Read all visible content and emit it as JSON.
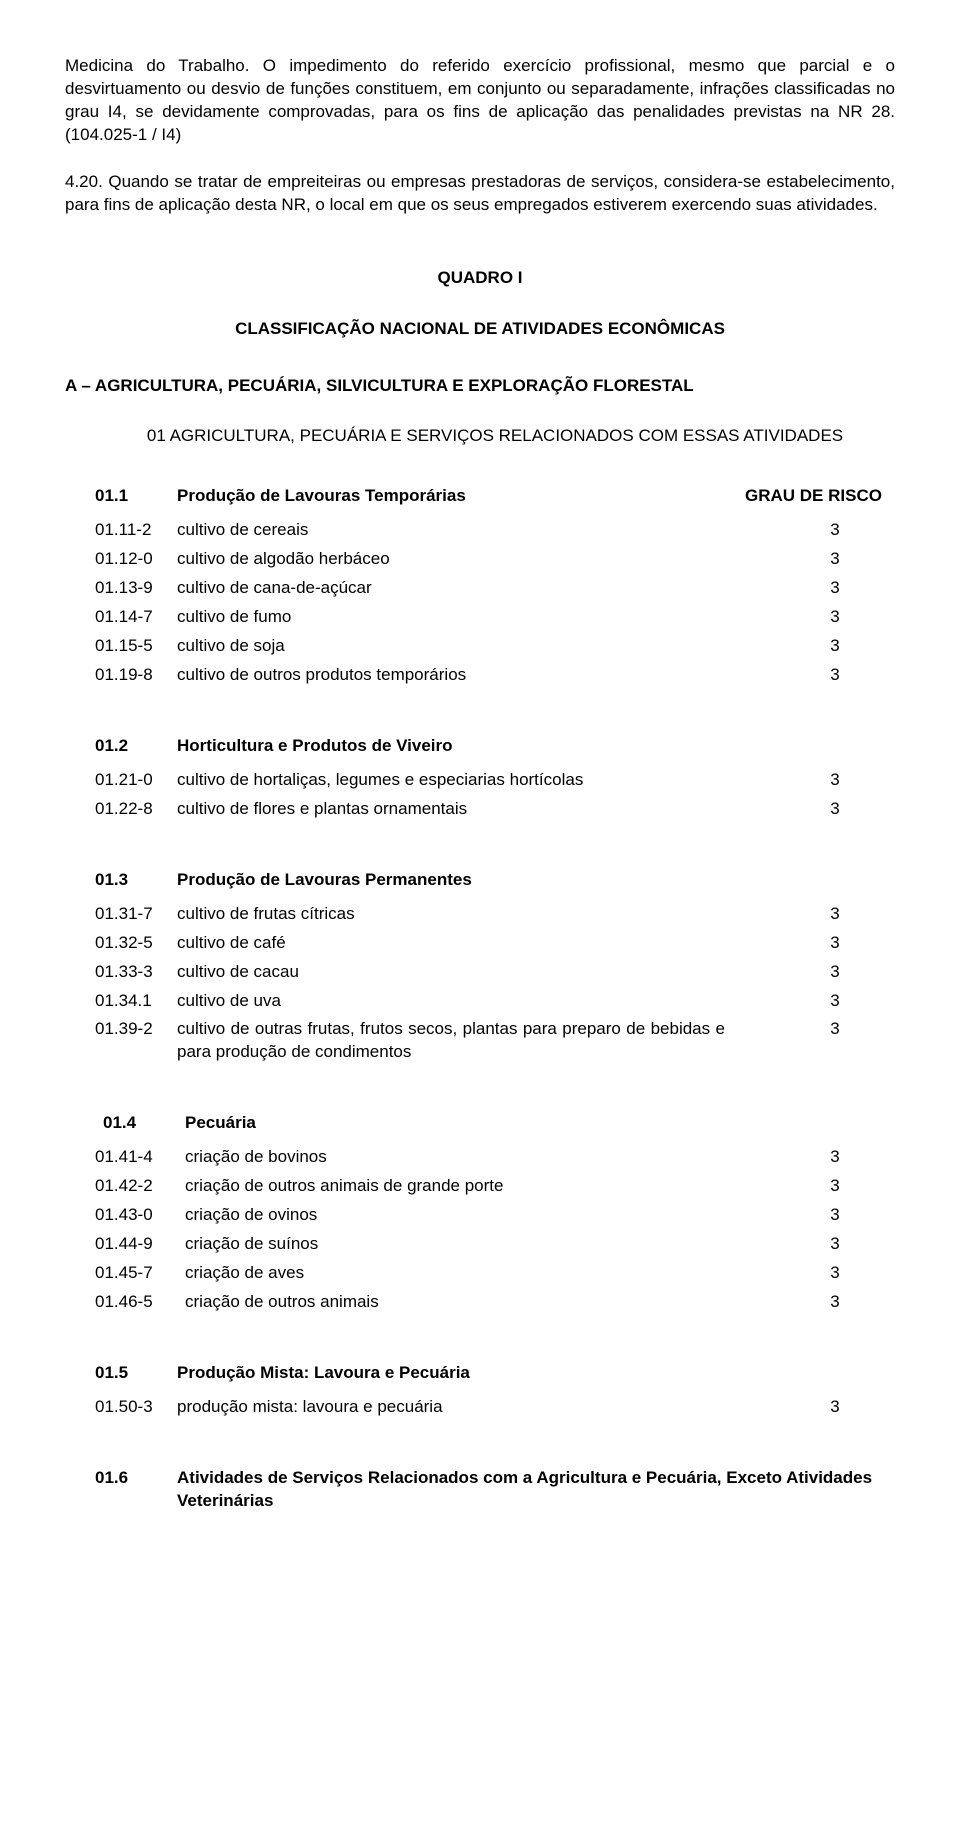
{
  "paragraphs": {
    "p1": "Medicina do Trabalho. O impedimento do referido exercício profissional, mesmo que parcial e o desvirtuamento ou desvio de funções constituem, em conjunto ou separadamente, infrações classificadas no grau I4, se devidamente comprovadas, para os fins de aplicação das penalidades previstas na NR 28. (104.025-1 / I4)",
    "p2": "4.20. Quando se tratar de empreiteiras ou empresas prestadoras de serviços, considera-se estabelecimento, para fins de aplicação desta NR, o local em que os seus empregados estiverem exercendo suas atividades."
  },
  "quadro": {
    "title": "QUADRO I",
    "subtitle": "CLASSIFICAÇÃO NACIONAL DE ATIVIDADES ECONÔMICAS",
    "sectionA": "A – AGRICULTURA, PECUÁRIA, SILVICULTURA E EXPLORAÇÃO FLORESTAL",
    "section01": "01 AGRICULTURA, PECUÁRIA E SERVIÇOS RELACIONADOS COM ESSAS ATIVIDADES",
    "riskHeader": "GRAU DE RISCO"
  },
  "groups": [
    {
      "code": "01.1",
      "title": "Produção de Lavouras Temporárias",
      "showRiskHeader": true,
      "rows": [
        {
          "code": "01.11-2",
          "desc": "cultivo de cereais",
          "risk": "3"
        },
        {
          "code": "01.12-0",
          "desc": "cultivo de algodão herbáceo",
          "risk": "3"
        },
        {
          "code": "01.13-9",
          "desc": "cultivo de cana-de-açúcar",
          "risk": "3"
        },
        {
          "code": "01.14-7",
          "desc": "cultivo de fumo",
          "risk": "3"
        },
        {
          "code": "01.15-5",
          "desc": "cultivo de soja",
          "risk": "3"
        },
        {
          "code": "01.19-8",
          "desc": "cultivo de outros produtos temporários",
          "risk": "3"
        }
      ]
    },
    {
      "code": "01.2",
      "title": "Horticultura e Produtos de Viveiro",
      "rows": [
        {
          "code": "01.21-0",
          "desc": "cultivo de hortaliças, legumes e especiarias hortícolas",
          "risk": "3",
          "justify": true
        },
        {
          "code": "01.22-8",
          "desc": "cultivo de flores e plantas ornamentais",
          "risk": "3"
        }
      ]
    },
    {
      "code": "01.3",
      "title": "Produção de Lavouras Permanentes",
      "rows": [
        {
          "code": "01.31-7",
          "desc": "cultivo de frutas cítricas",
          "risk": "3"
        },
        {
          "code": "01.32-5",
          "desc": "cultivo de café",
          "risk": "3"
        },
        {
          "code": "01.33-3",
          "desc": "cultivo de cacau",
          "risk": "3"
        },
        {
          "code": "01.34.1",
          "desc": "cultivo de uva",
          "risk": "3"
        },
        {
          "code": "01.39-2",
          "desc": "cultivo de outras frutas, frutos secos, plantas para preparo de bebidas e para produção de condimentos",
          "risk": "3",
          "justify": true
        }
      ]
    },
    {
      "code": "01.4",
      "title": "Pecuária",
      "indentCode": true,
      "rows": [
        {
          "code": "01.41-4",
          "desc": "criação de bovinos",
          "risk": "3"
        },
        {
          "code": "01.42-2",
          "desc": "criação de outros animais de grande porte",
          "risk": "3"
        },
        {
          "code": "01.43-0",
          "desc": "criação de ovinos",
          "risk": "3"
        },
        {
          "code": "01.44-9",
          "desc": "criação de suínos",
          "risk": "3"
        },
        {
          "code": "01.45-7",
          "desc": "criação de aves",
          "risk": "3"
        },
        {
          "code": "01.46-5",
          "desc": "criação de outros animais",
          "risk": "3"
        }
      ]
    },
    {
      "code": "01.5",
      "title": "Produção Mista: Lavoura e Pecuária",
      "rows": [
        {
          "code": "01.50-3",
          "desc": "produção mista: lavoura e pecuária",
          "risk": "3"
        }
      ]
    },
    {
      "code": "01.6",
      "title": "Atividades de Serviços Relacionados com a Agricultura e Pecuária, Exceto Atividades Veterinárias",
      "wide": true,
      "rows": []
    }
  ]
}
